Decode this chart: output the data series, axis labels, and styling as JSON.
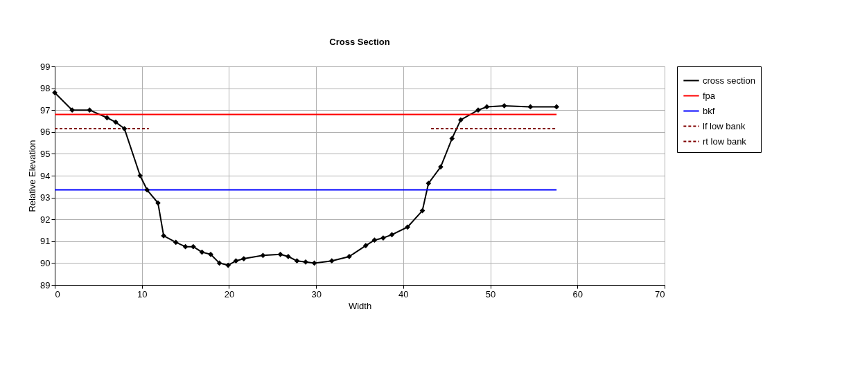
{
  "chart_data": {
    "type": "line",
    "title": "Cross Section",
    "xlabel": "Width",
    "ylabel": "Relative Elevation",
    "xlim": [
      0,
      70
    ],
    "xticks": [
      0,
      10,
      20,
      30,
      40,
      50,
      60,
      70
    ],
    "ylim": [
      89,
      99
    ],
    "yticks": [
      89,
      90,
      91,
      92,
      93,
      94,
      95,
      96,
      97,
      98,
      99
    ],
    "grid": true,
    "legend": "right",
    "series": [
      {
        "name": "cross section",
        "color": "#000000",
        "marker": "diamond",
        "line_style": "solid",
        "x": [
          0,
          2,
          4,
          6,
          7,
          8,
          9.8,
          10.6,
          11.85,
          12.5,
          13.9,
          15,
          15.9,
          16.9,
          17.9,
          18.9,
          19.9,
          20.8,
          21.7,
          23.9,
          25.9,
          26.8,
          27.8,
          28.8,
          29.8,
          31.8,
          33.8,
          35.7,
          36.7,
          37.7,
          38.7,
          40.5,
          42.2,
          42.9,
          44.3,
          45.6,
          46.6,
          48.6,
          49.6,
          51.6,
          54.6,
          57.6
        ],
        "values": [
          97.8,
          97.0,
          97.0,
          96.65,
          96.45,
          96.15,
          94.0,
          93.35,
          92.75,
          91.25,
          90.95,
          90.75,
          90.75,
          90.5,
          90.4,
          90.0,
          89.9,
          90.1,
          90.2,
          90.35,
          90.4,
          90.3,
          90.1,
          90.05,
          90.0,
          90.1,
          90.3,
          90.8,
          91.05,
          91.15,
          91.3,
          91.65,
          92.4,
          93.65,
          94.4,
          95.7,
          96.55,
          97.0,
          97.15,
          97.2,
          97.15,
          97.15
        ]
      },
      {
        "name": "fpa",
        "color": "#ff0000",
        "marker": "none",
        "line_style": "solid",
        "x": [
          0,
          57.6
        ],
        "values": [
          96.8,
          96.8
        ]
      },
      {
        "name": "bkf",
        "color": "#0000ff",
        "marker": "none",
        "line_style": "solid",
        "x": [
          0,
          57.6
        ],
        "values": [
          93.35,
          93.35
        ]
      },
      {
        "name": "lf low bank",
        "color": "#800000",
        "marker": "none",
        "line_style": "dashed",
        "x": [
          0,
          10.8
        ],
        "values": [
          96.15,
          96.15
        ]
      },
      {
        "name": "rt low bank",
        "color": "#800000",
        "marker": "none",
        "line_style": "dashed",
        "x": [
          43.2,
          57.6
        ],
        "values": [
          96.15,
          96.15
        ]
      }
    ]
  }
}
